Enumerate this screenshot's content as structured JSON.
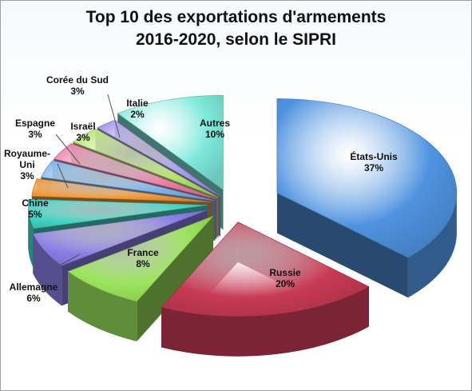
{
  "title": {
    "line1": "Top 10 des exportations d'armements",
    "line2": "2016-2020, selon le SIPRI"
  },
  "chart_data": {
    "type": "pie",
    "title": "Top 10 des exportations d'armements 2016-2020, selon le SIPRI",
    "style": "3d-exploded",
    "slices": [
      {
        "label": "États-Unis",
        "value": 37,
        "display": "37%",
        "color": "#4f93e0"
      },
      {
        "label": "Russie",
        "value": 20,
        "display": "20%",
        "color": "#c83a55"
      },
      {
        "label": "France",
        "value": 8,
        "display": "8%",
        "color": "#9be45c"
      },
      {
        "label": "Allemagne",
        "value": 6,
        "display": "6%",
        "color": "#8a7ee6"
      },
      {
        "label": "Chine",
        "value": 5,
        "display": "5%",
        "color": "#43d4c4"
      },
      {
        "label": "Royaume-Uni",
        "value": 3,
        "display": "3%",
        "color": "#f39a3c"
      },
      {
        "label": "Espagne",
        "value": 3,
        "display": "3%",
        "color": "#7fb6ec"
      },
      {
        "label": "Israël",
        "value": 3,
        "display": "3%",
        "color": "#ec7fa6"
      },
      {
        "label": "Corée du Sud",
        "value": 3,
        "display": "3%",
        "color": "#b6e472"
      },
      {
        "label": "Italie",
        "value": 2,
        "display": "2%",
        "color": "#a89af0"
      },
      {
        "label": "Autres",
        "value": 10,
        "display": "10%",
        "color": "#7eeadb"
      }
    ]
  }
}
